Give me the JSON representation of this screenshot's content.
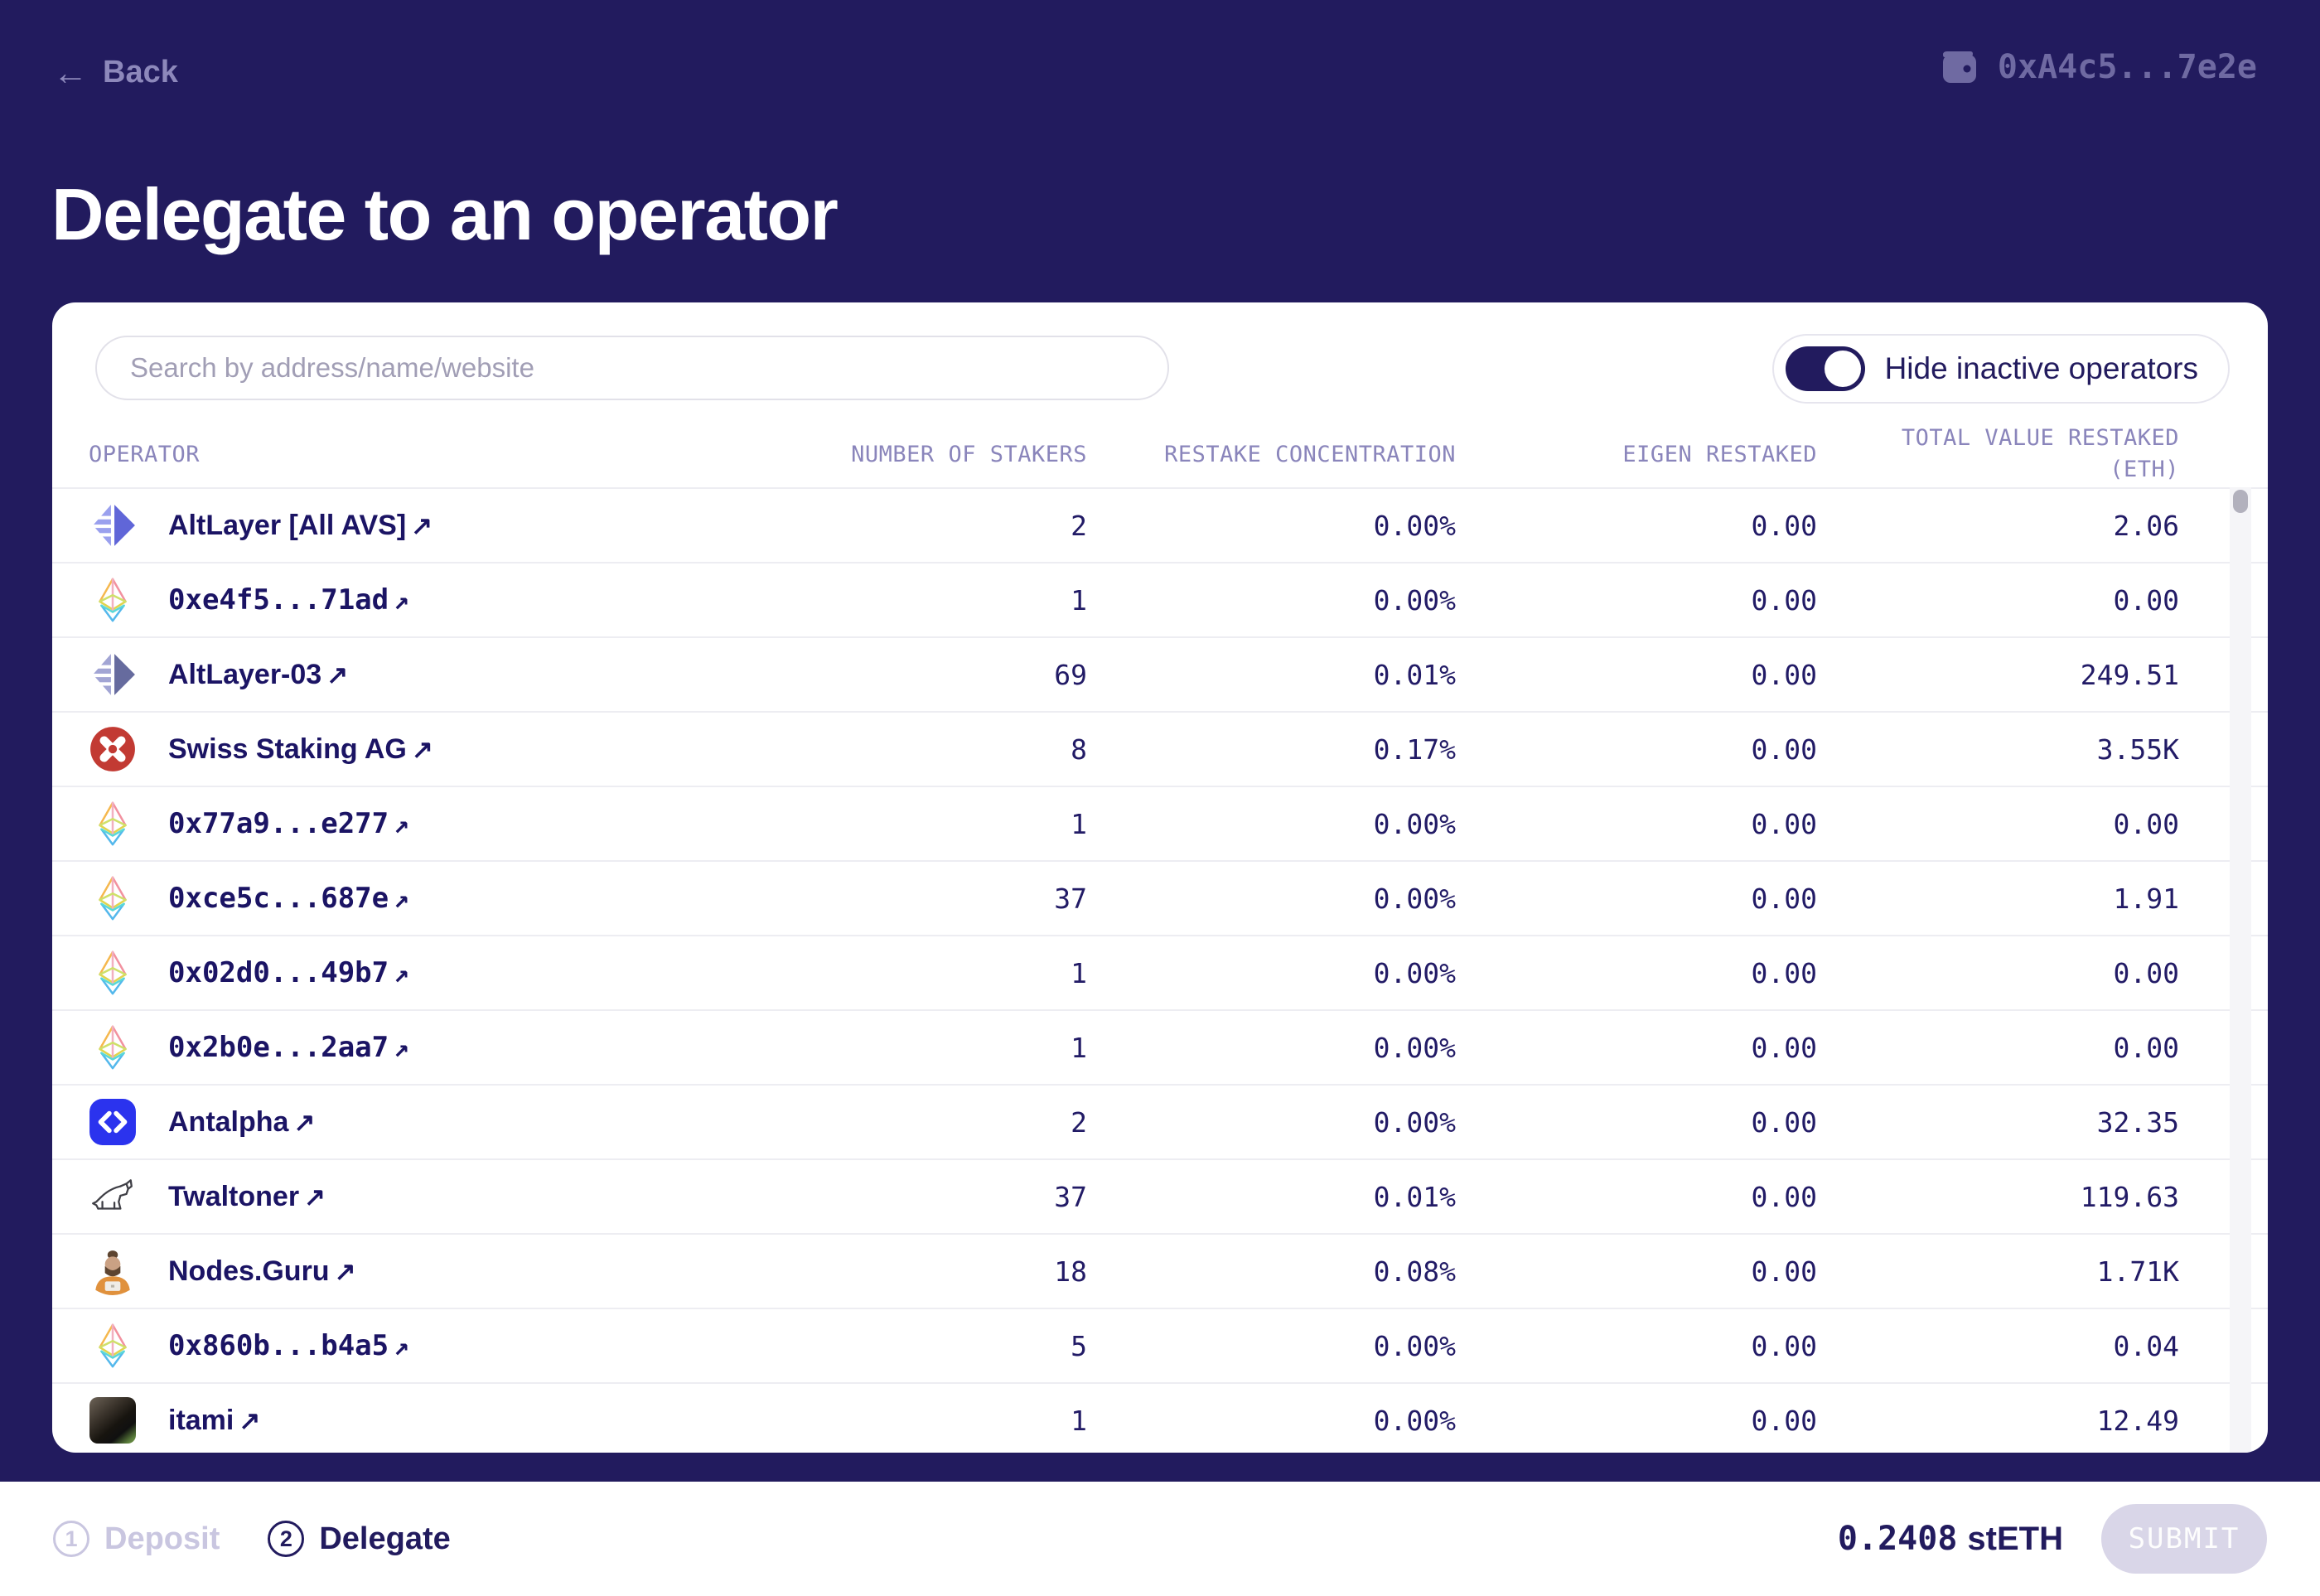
{
  "header": {
    "back_label": "Back",
    "wallet_address": "0xA4c5...7e2e"
  },
  "title": "Delegate to an operator",
  "panel": {
    "search_placeholder": "Search by address/name/website",
    "toggle_label": "Hide inactive operators",
    "toggle_on": true
  },
  "table": {
    "headers": {
      "operator": "OPERATOR",
      "stakers": "NUMBER OF STAKERS",
      "concentration": "RESTAKE CONCENTRATION",
      "eigen": "EIGEN RESTAKED",
      "total_line1": "TOTAL VALUE RESTAKED",
      "total_line2": "(ETH)"
    },
    "rows": [
      {
        "name": "AltLayer [All AVS]",
        "icon": "altlayer-logo-icon",
        "address_style": false,
        "stakers": "2",
        "concentration": "0.00%",
        "eigen": "0.00",
        "total": "2.06"
      },
      {
        "name": "0xe4f5...71ad",
        "icon": "eth-diamond-icon",
        "address_style": true,
        "stakers": "1",
        "concentration": "0.00%",
        "eigen": "0.00",
        "total": "0.00"
      },
      {
        "name": "AltLayer-03",
        "icon": "altlayer-dark-logo-icon",
        "address_style": false,
        "stakers": "69",
        "concentration": "0.01%",
        "eigen": "0.00",
        "total": "249.51"
      },
      {
        "name": "Swiss Staking AG",
        "icon": "swiss-staking-logo-icon",
        "address_style": false,
        "stakers": "8",
        "concentration": "0.17%",
        "eigen": "0.00",
        "total": "3.55K"
      },
      {
        "name": "0x77a9...e277",
        "icon": "eth-diamond-icon",
        "address_style": true,
        "stakers": "1",
        "concentration": "0.00%",
        "eigen": "0.00",
        "total": "0.00"
      },
      {
        "name": "0xce5c...687e",
        "icon": "eth-diamond-icon",
        "address_style": true,
        "stakers": "37",
        "concentration": "0.00%",
        "eigen": "0.00",
        "total": "1.91"
      },
      {
        "name": "0x02d0...49b7",
        "icon": "eth-diamond-icon",
        "address_style": true,
        "stakers": "1",
        "concentration": "0.00%",
        "eigen": "0.00",
        "total": "0.00"
      },
      {
        "name": "0x2b0e...2aa7",
        "icon": "eth-diamond-icon",
        "address_style": true,
        "stakers": "1",
        "concentration": "0.00%",
        "eigen": "0.00",
        "total": "0.00"
      },
      {
        "name": "Antalpha",
        "icon": "antalpha-logo-icon",
        "address_style": false,
        "stakers": "2",
        "concentration": "0.00%",
        "eigen": "0.00",
        "total": "32.35"
      },
      {
        "name": "Twaltoner",
        "icon": "twaltoner-logo-icon",
        "address_style": false,
        "stakers": "37",
        "concentration": "0.01%",
        "eigen": "0.00",
        "total": "119.63"
      },
      {
        "name": "Nodes.Guru",
        "icon": "nodes-guru-logo-icon",
        "address_style": false,
        "stakers": "18",
        "concentration": "0.08%",
        "eigen": "0.00",
        "total": "1.71K"
      },
      {
        "name": "0x860b...b4a5",
        "icon": "eth-diamond-icon",
        "address_style": true,
        "stakers": "5",
        "concentration": "0.00%",
        "eigen": "0.00",
        "total": "0.04"
      },
      {
        "name": "itami",
        "icon": "itami-avatar",
        "address_style": false,
        "stakers": "1",
        "concentration": "0.00%",
        "eigen": "0.00",
        "total": "12.49"
      }
    ]
  },
  "footer": {
    "steps": [
      {
        "num": "1",
        "label": "Deposit",
        "active": false
      },
      {
        "num": "2",
        "label": "Delegate",
        "active": true
      }
    ],
    "balance_amount": "0.2408",
    "balance_token": "stETH",
    "submit_label": "SUBMIT"
  },
  "glyphs": {
    "back_arrow": "←",
    "external_link": "↗"
  },
  "colors": {
    "background_navy": "#221b5e",
    "card_white": "#ffffff",
    "muted_lavender": "#8d88bb",
    "wallet_text": "#6f6aa2",
    "name_navy": "#1b1464",
    "disabled_pill": "#d9d6e8",
    "swiss_staking_red": "#c23a33",
    "antalpha_blue": "#2b33ee"
  }
}
